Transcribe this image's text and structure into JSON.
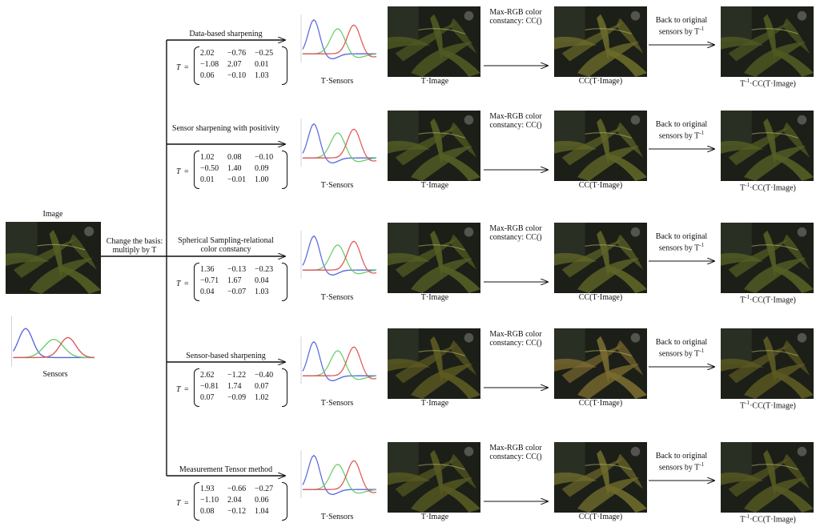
{
  "input": {
    "image_label": "Image",
    "sensors_label": "Sensors",
    "change_basis": "Change the basis: multiply by T"
  },
  "row_labels": {
    "t_sensors": "T·Sensors",
    "t_image": "T·Image",
    "cc_label": "Max-RGB color constancy: CC()",
    "cc_image": "CC(T·Image)",
    "back_label": "Back to original sensors by T",
    "back_sup": "-1",
    "final_pre": "T",
    "final_sup": "-1",
    "final_post": "·CC(T·Image)"
  },
  "matrix_symbol": "T",
  "matrix_eq": "=",
  "rows": [
    {
      "method": "Data-based sharpening",
      "matrix": [
        [
          "2.02",
          "−0.76",
          "−0.25"
        ],
        [
          "−1.08",
          "2.07",
          "0.01"
        ],
        [
          "0.06",
          "−0.10",
          "1.03"
        ]
      ],
      "tint": "#4f5a22",
      "cc_tint": "#6a6a2a"
    },
    {
      "method": "Sensor sharpening with positivity",
      "matrix": [
        [
          "1.02",
          "0.08",
          "−0.10"
        ],
        [
          "−0.50",
          "1.40",
          "0.09"
        ],
        [
          "0.01",
          "−0.01",
          "1.00"
        ]
      ],
      "tint": "#545e24",
      "cc_tint": "#5f6428"
    },
    {
      "method": "Spherical Sampling-relational color constancy",
      "matrix": [
        [
          "1.36",
          "−0.13",
          "−0.23"
        ],
        [
          "−0.71",
          "1.67",
          "0.04"
        ],
        [
          "0.04",
          "−0.07",
          "1.03"
        ]
      ],
      "tint": "#545e24",
      "cc_tint": "#5f6428"
    },
    {
      "method": "Sensor-based sharpening",
      "matrix": [
        [
          "2.62",
          "−1.22",
          "−0.40"
        ],
        [
          "−0.81",
          "1.74",
          "0.07"
        ],
        [
          "0.07",
          "−0.09",
          "1.02"
        ]
      ],
      "tint": "#5d5a22",
      "cc_tint": "#7a6a30"
    },
    {
      "method": "Measurement Tensor method",
      "matrix": [
        [
          "1.93",
          "−0.66",
          "−0.27"
        ],
        [
          "−1.10",
          "2.04",
          "0.06"
        ],
        [
          "0.08",
          "−0.12",
          "1.04"
        ]
      ],
      "tint": "#575a22",
      "cc_tint": "#6e6a2c"
    }
  ],
  "colors": {
    "blue": "#5566dd",
    "green": "#66cc66",
    "red": "#dd5555",
    "line": "#111111"
  }
}
